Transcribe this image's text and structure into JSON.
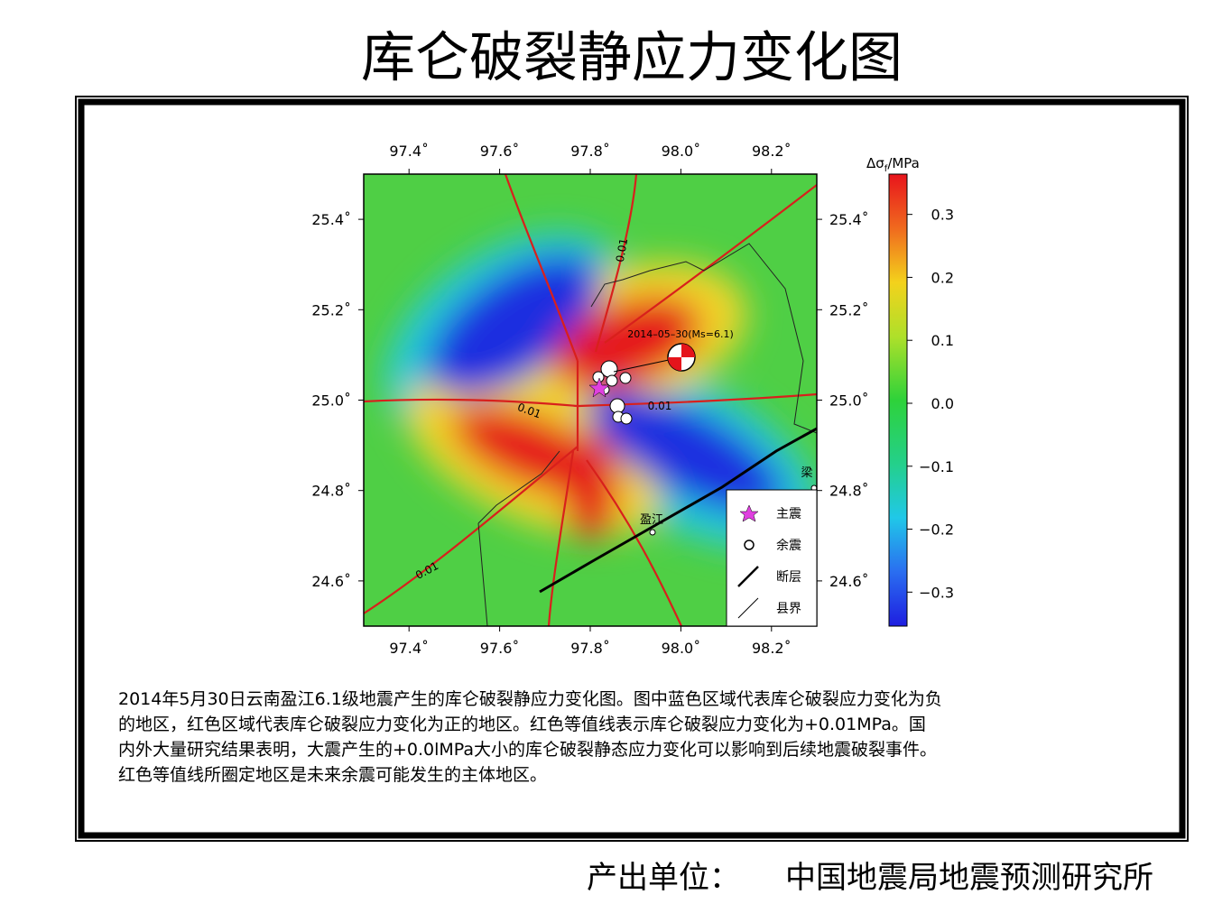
{
  "title": "库仑破裂静应力变化图",
  "map": {
    "lon_ticks": [
      {
        "value": 97.4,
        "label": "97.4˚"
      },
      {
        "value": 97.6,
        "label": "97.6˚"
      },
      {
        "value": 97.8,
        "label": "97.8˚"
      },
      {
        "value": 98.0,
        "label": "98.0˚"
      },
      {
        "value": 98.2,
        "label": "98.2˚"
      }
    ],
    "lat_ticks": [
      {
        "value": 25.4,
        "label": "25.4˚"
      },
      {
        "value": 25.2,
        "label": "25.2˚"
      },
      {
        "value": 25.0,
        "label": "25.0˚"
      },
      {
        "value": 24.8,
        "label": "24.8˚"
      },
      {
        "value": 24.6,
        "label": "24.6˚"
      }
    ],
    "xlim": [
      97.3,
      98.3
    ],
    "ylim": [
      24.5,
      25.5
    ],
    "annotations": {
      "mainshock": "2014–05–30(Ms=6.1)",
      "contours": [
        "0.01",
        "0.01",
        "0.01",
        "0.01"
      ],
      "towns": [
        "盈江",
        "梁"
      ]
    },
    "legend": [
      "主震",
      "余震",
      "断层",
      "县界"
    ],
    "colorbar": {
      "label_symbol": "Δσ",
      "label_subscript": "f",
      "label_unit": "/MPa",
      "lim": [
        -0.354,
        0.364
      ],
      "ticks": [
        {
          "value": 0.3,
          "label": "0.3"
        },
        {
          "value": 0.2,
          "label": "0.2"
        },
        {
          "value": 0.1,
          "label": "0.1"
        },
        {
          "value": 0,
          "label": "0.0"
        },
        {
          "value": -0.1,
          "label": "−0.1"
        },
        {
          "value": -0.2,
          "label": "−0.2"
        },
        {
          "value": -0.3,
          "label": "−0.3"
        }
      ]
    }
  },
  "caption": [
    "2014年5月30日云南盈江6.1级地震产生的库仑破裂静应力变化图。图中蓝色区域代表库仑破裂应力变化为负",
    "的地区，红色区域代表库仑破裂应力变化为正的地区。红色等值线表示库仑破裂应力变化为+0.01MPa。国",
    "内外大量研究结果表明，大震产生的+0.0lMPa大小的库仑破裂静态应力变化可以影响到后续地震破裂事件。",
    "红色等值线所圈定地区是未来余震可能发生的主体地区。"
  ],
  "footer": {
    "label": "产出单位：",
    "org": "中国地震局地震预测研究所"
  }
}
